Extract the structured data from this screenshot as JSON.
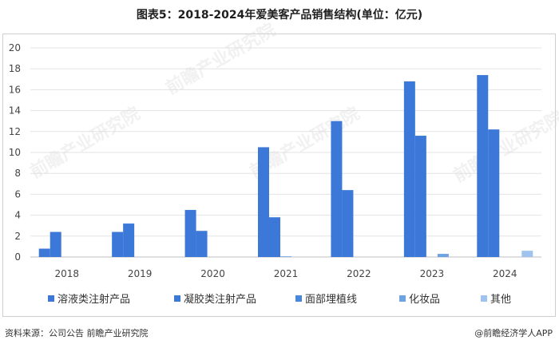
{
  "title": "图表5：2018-2024年爱美客产品销售结构(单位：亿元)",
  "chart_data": {
    "type": "bar",
    "categories": [
      "2018",
      "2019",
      "2020",
      "2021",
      "2022",
      "2023",
      "2024"
    ],
    "ylim": [
      0,
      20
    ],
    "yticks": [
      "0",
      "2",
      "4",
      "6",
      "8",
      "10",
      "12",
      "14",
      "16",
      "18",
      "20"
    ],
    "grid": true,
    "legend_position": "bottom",
    "series": [
      {
        "name": "溶液类注射产品",
        "color": "#3b78d8",
        "values": [
          0.8,
          2.4,
          4.5,
          10.5,
          13.0,
          16.8,
          17.4
        ]
      },
      {
        "name": "凝胶类注射产品",
        "color": "#3b78d8",
        "values": [
          2.4,
          3.2,
          2.5,
          3.8,
          6.4,
          11.6,
          12.2
        ]
      },
      {
        "name": "面部埋植线",
        "color": "#4a86d9",
        "values": [
          0,
          0,
          0,
          0.05,
          0,
          0,
          0
        ]
      },
      {
        "name": "化妆品",
        "color": "#6fa3e0",
        "values": [
          0,
          0,
          0,
          0,
          0,
          0.3,
          0
        ]
      },
      {
        "name": "其他",
        "color": "#9fc3ee",
        "values": [
          0,
          0,
          0,
          0,
          0,
          0,
          0.6
        ]
      }
    ]
  },
  "watermark": "前瞻产业研究院",
  "footer": {
    "source": "资料来源：公司公告 前瞻产业研究院",
    "brand": "@前瞻经济学人APP"
  }
}
